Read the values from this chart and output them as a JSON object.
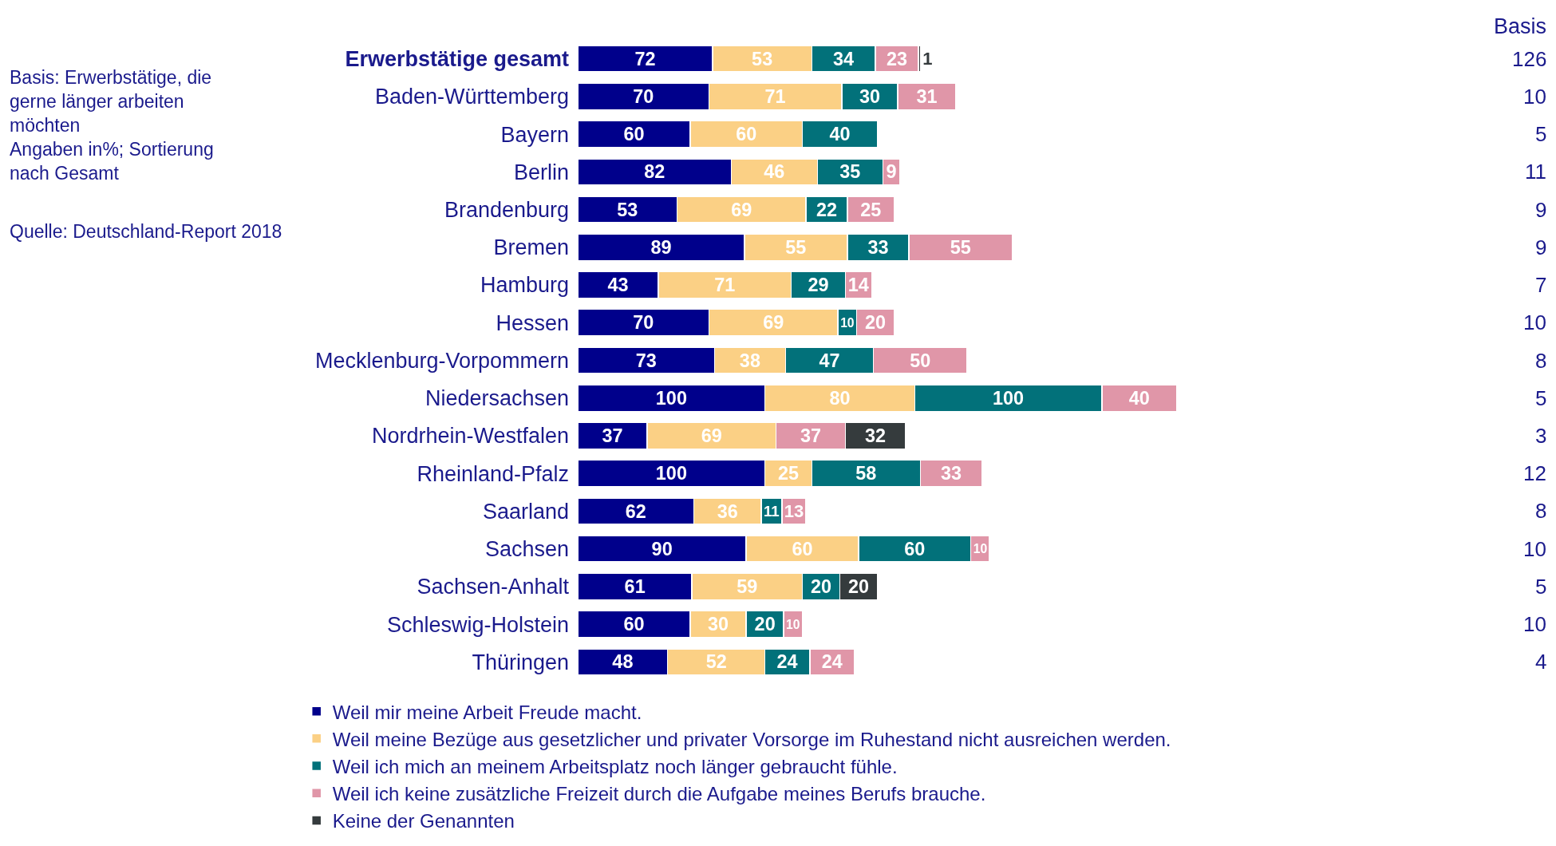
{
  "chart_data": {
    "type": "bar",
    "orientation": "horizontal",
    "stacked": true,
    "data_labels": true,
    "legend": "bottom",
    "categories": [
      "Erwerbstätige gesamt",
      "Baden-Württemberg",
      "Bayern",
      "Berlin",
      "Brandenburg",
      "Bremen",
      "Hamburg",
      "Hessen",
      "Mecklenburg-Vorpommern",
      "Niedersachsen",
      "Nordrhein-Westfalen",
      "Rheinland-Pfalz",
      "Saarland",
      "Sachsen",
      "Sachsen-Anhalt",
      "Schleswig-Holstein",
      "Thüringen"
    ],
    "series": [
      {
        "name": "Weil mir meine Arbeit Freude macht.",
        "color": "#00008b",
        "values": [
          72,
          70,
          60,
          82,
          53,
          89,
          43,
          70,
          73,
          100,
          37,
          100,
          62,
          90,
          61,
          60,
          48
        ]
      },
      {
        "name": "Weil meine Bezüge aus gesetzlicher und privater Vorsorge im Ruhestand nicht ausreichen werden.",
        "color": "#fbd085",
        "values": [
          53,
          71,
          60,
          46,
          69,
          55,
          71,
          69,
          38,
          80,
          69,
          25,
          36,
          60,
          59,
          30,
          52
        ]
      },
      {
        "name": "Weil ich mich an meinem Arbeitsplatz noch länger gebraucht fühle.",
        "color": "#02717a",
        "values": [
          34,
          30,
          40,
          35,
          22,
          33,
          29,
          10,
          47,
          100,
          null,
          58,
          11,
          60,
          20,
          20,
          24
        ]
      },
      {
        "name": "Weil ich keine zusätzliche Freizeit durch die Aufgabe meines Berufs brauche.",
        "color": "#e096a8",
        "values": [
          23,
          31,
          null,
          9,
          25,
          55,
          14,
          20,
          50,
          40,
          37,
          33,
          13,
          10,
          null,
          10,
          24
        ]
      },
      {
        "name": "Keine der Genannten",
        "color": "#353b3d",
        "values": [
          1,
          null,
          null,
          null,
          null,
          null,
          null,
          null,
          null,
          null,
          32,
          null,
          null,
          null,
          20,
          null,
          null
        ]
      }
    ],
    "annotations": [
      "Basis: Erwerbstätige, die\ngerne länger arbeiten\nmöchten\nAngaben in%; Sortierung\nnach Gesamt",
      "Quelle: Deutschland-Report 2018",
      "Basis",
      "126",
      "10",
      "5",
      "11",
      "9",
      "9",
      "7",
      "10",
      "8",
      "5",
      "3",
      "12",
      "8",
      "10",
      "5",
      "10",
      "4"
    ]
  }
}
